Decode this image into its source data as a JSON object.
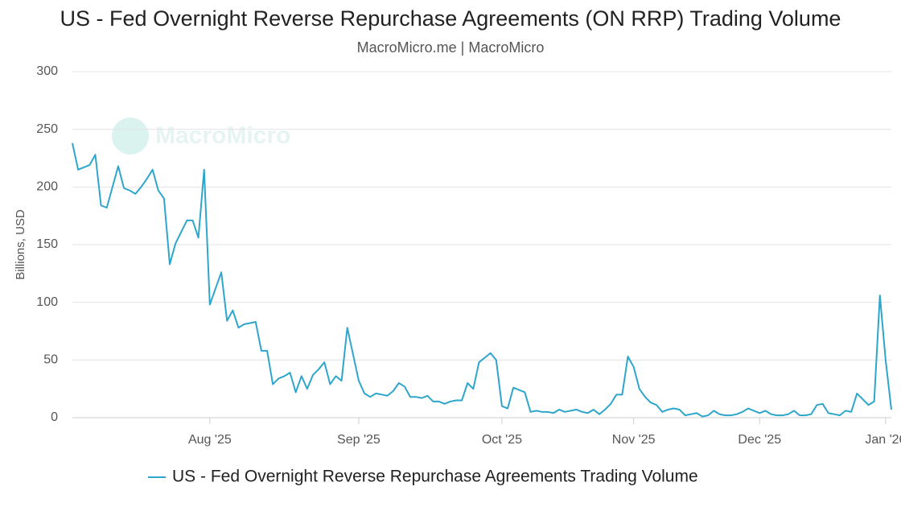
{
  "chart_data": {
    "type": "line",
    "title": "US - Fed Overnight Reverse Repurchase Agreements (ON RRP) Trading Volume",
    "subtitle": "MacroMicro.me | MacroMicro",
    "watermark": "MacroMicro",
    "y_label": "Billions, USD",
    "ylim": [
      0,
      300
    ],
    "yticks": [
      0,
      50,
      100,
      150,
      200,
      250,
      300
    ],
    "grid": true,
    "categories": [
      null,
      null,
      null,
      null,
      null,
      null,
      null,
      null,
      null,
      null,
      null,
      null,
      null,
      null,
      null,
      null,
      null,
      null,
      null,
      null,
      null,
      null,
      null,
      null,
      "Aug '25",
      null,
      null,
      null,
      null,
      null,
      null,
      null,
      null,
      null,
      null,
      null,
      null,
      null,
      null,
      null,
      null,
      null,
      null,
      null,
      null,
      null,
      null,
      null,
      null,
      null,
      "Sep '25",
      null,
      null,
      null,
      null,
      null,
      null,
      null,
      null,
      null,
      null,
      null,
      null,
      null,
      null,
      null,
      null,
      null,
      null,
      null,
      null,
      null,
      null,
      null,
      null,
      "Oct '25",
      null,
      null,
      null,
      null,
      null,
      null,
      null,
      null,
      null,
      null,
      null,
      null,
      null,
      null,
      null,
      null,
      null,
      null,
      null,
      null,
      null,
      null,
      "Nov '25",
      null,
      null,
      null,
      null,
      null,
      null,
      null,
      null,
      null,
      null,
      null,
      null,
      null,
      null,
      null,
      null,
      null,
      null,
      null,
      null,
      null,
      "Dec '25",
      null,
      null,
      null,
      null,
      null,
      null,
      null,
      null,
      null,
      null,
      null,
      null,
      null,
      null,
      null,
      null,
      null,
      null,
      null,
      null,
      null,
      "Jan '26",
      null
    ],
    "series": [
      {
        "name": "US - Fed Overnight Reverse Repurchase Agreements Trading Volume",
        "color": "#2ea6cb",
        "values": [
          238,
          215,
          217,
          219,
          228,
          184,
          182,
          200,
          218,
          199,
          197,
          194,
          200,
          207,
          215,
          197,
          190,
          133,
          151,
          161,
          171,
          171,
          156,
          215,
          98,
          112,
          126,
          84,
          93,
          78,
          81,
          82,
          83,
          58,
          58,
          29,
          34,
          36,
          39,
          22,
          36,
          25,
          37,
          42,
          48,
          29,
          36,
          32,
          78,
          55,
          32,
          21,
          18,
          21,
          20,
          19,
          23,
          30,
          27,
          18,
          18,
          17,
          19,
          14,
          14,
          12,
          14,
          15,
          15,
          30,
          25,
          48,
          52,
          56,
          50,
          10,
          8,
          26,
          24,
          22,
          5,
          6,
          5,
          5,
          4,
          7,
          5,
          6,
          7,
          5,
          4,
          7,
          3,
          7,
          12,
          20,
          20,
          53,
          44,
          25,
          18,
          13,
          11,
          5,
          7,
          8,
          7,
          2,
          3,
          4,
          1,
          2,
          6,
          3,
          2,
          2,
          3,
          5,
          8,
          6,
          4,
          6,
          3,
          2,
          2,
          3,
          6,
          2,
          2,
          3,
          11,
          12,
          4,
          3,
          2,
          6,
          5,
          21,
          16,
          11,
          14,
          106,
          50,
          7
        ]
      }
    ]
  }
}
